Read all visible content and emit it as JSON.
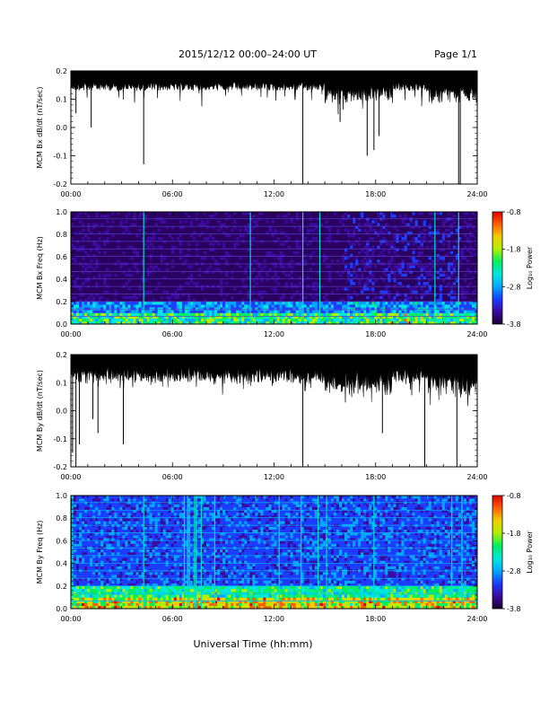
{
  "header": {
    "date_range": "2015/12/12  00:00–24:00 UT",
    "page": "Page 1/1"
  },
  "footer": {
    "xlabel": "Universal Time (hh:mm)"
  },
  "colors": {
    "trace": "#000000",
    "spectrogram_bg": "#2a0060",
    "colormap": [
      "#1a0030",
      "#3b0aa0",
      "#1c3cff",
      "#00a8ff",
      "#00e8e0",
      "#00f060",
      "#b0f000",
      "#f0d000",
      "#ff6000",
      "#e00000"
    ]
  },
  "chart_data": [
    {
      "id": "bx-ts",
      "type": "line",
      "ylabel": "MCM Bx dB/dt (nT/sec)",
      "x_ticks": [
        "00:00",
        "06:00",
        "12:00",
        "18:00",
        "24:00"
      ],
      "xlim": [
        0,
        24
      ],
      "ylim": [
        -0.2,
        0.2
      ],
      "y_ticks": [
        "0.2",
        "0.1",
        "0.0",
        "-0.1",
        "-0.2"
      ],
      "spikes": [
        {
          "x": 0.3,
          "y": 0.05
        },
        {
          "x": 1.2,
          "y": 0.0
        },
        {
          "x": 4.3,
          "y": -0.13
        },
        {
          "x": 13.7,
          "y": -0.2
        },
        {
          "x": 15.9,
          "y": 0.02
        },
        {
          "x": 17.5,
          "y": -0.1
        },
        {
          "x": 17.9,
          "y": -0.08
        },
        {
          "x": 18.2,
          "y": -0.03
        },
        {
          "x": 22.9,
          "y": -0.2
        },
        {
          "x": 23.0,
          "y": -0.2
        }
      ]
    },
    {
      "id": "bx-spec",
      "type": "heatmap",
      "ylabel": "MCM Bx Freq (Hz)",
      "x_ticks": [
        "00:00",
        "06:00",
        "12:00",
        "18:00",
        "24:00"
      ],
      "xlim": [
        0,
        24
      ],
      "ylim": [
        0.0,
        1.0
      ],
      "y_ticks": [
        "1.0",
        "0.8",
        "0.6",
        "0.4",
        "0.2",
        "0.0"
      ],
      "colorbar": {
        "label": "Log₁₀ Power",
        "range": [
          -3.8,
          -0.8
        ],
        "ticks": [
          "-0.8",
          "-1.8",
          "-2.8",
          "-3.8"
        ]
      },
      "vertical_lines_hr": [
        4.3,
        10.6,
        13.7,
        14.7,
        21.5,
        22.9
      ],
      "harmonic_step_hz": 0.067
    },
    {
      "id": "by-ts",
      "type": "line",
      "ylabel": "MCM By dB/dt (nT/sec)",
      "x_ticks": [
        "00:00",
        "06:00",
        "12:00",
        "18:00",
        "24:00"
      ],
      "xlim": [
        0,
        24
      ],
      "ylim": [
        -0.2,
        0.2
      ],
      "y_ticks": [
        "0.2",
        "0.1",
        "0.0",
        "-0.1",
        "-0.2"
      ],
      "spikes": [
        {
          "x": 0.1,
          "y": -0.15
        },
        {
          "x": 0.3,
          "y": -0.2
        },
        {
          "x": 0.5,
          "y": -0.12
        },
        {
          "x": 1.3,
          "y": -0.03
        },
        {
          "x": 1.6,
          "y": -0.08
        },
        {
          "x": 3.1,
          "y": -0.12
        },
        {
          "x": 13.7,
          "y": -0.2
        },
        {
          "x": 18.4,
          "y": -0.08
        },
        {
          "x": 20.9,
          "y": -0.2
        },
        {
          "x": 22.8,
          "y": -0.2
        },
        {
          "x": 18.5,
          "y": 0.18
        }
      ]
    },
    {
      "id": "by-spec",
      "type": "heatmap",
      "ylabel": "MCM By Freq (Hz)",
      "x_ticks": [
        "00:00",
        "06:00",
        "12:00",
        "18:00",
        "24:00"
      ],
      "xlim": [
        0,
        24
      ],
      "ylim": [
        0.0,
        1.0
      ],
      "y_ticks": [
        "1.0",
        "0.8",
        "0.6",
        "0.4",
        "0.2",
        "0.0"
      ],
      "colorbar": {
        "label": "Log₁₀ Power",
        "range": [
          -3.8,
          -0.8
        ],
        "ticks": [
          "-0.8",
          "-1.8",
          "-2.8",
          "-3.8"
        ]
      },
      "vertical_lines_hr": [
        0.1,
        4.3,
        6.7,
        6.9,
        7.0,
        7.3,
        7.4,
        7.7,
        8.5,
        12.3,
        13.6,
        14.6,
        15.1,
        17.9,
        22.5,
        23.1
      ],
      "harmonic_step_hz": 0.067
    }
  ]
}
